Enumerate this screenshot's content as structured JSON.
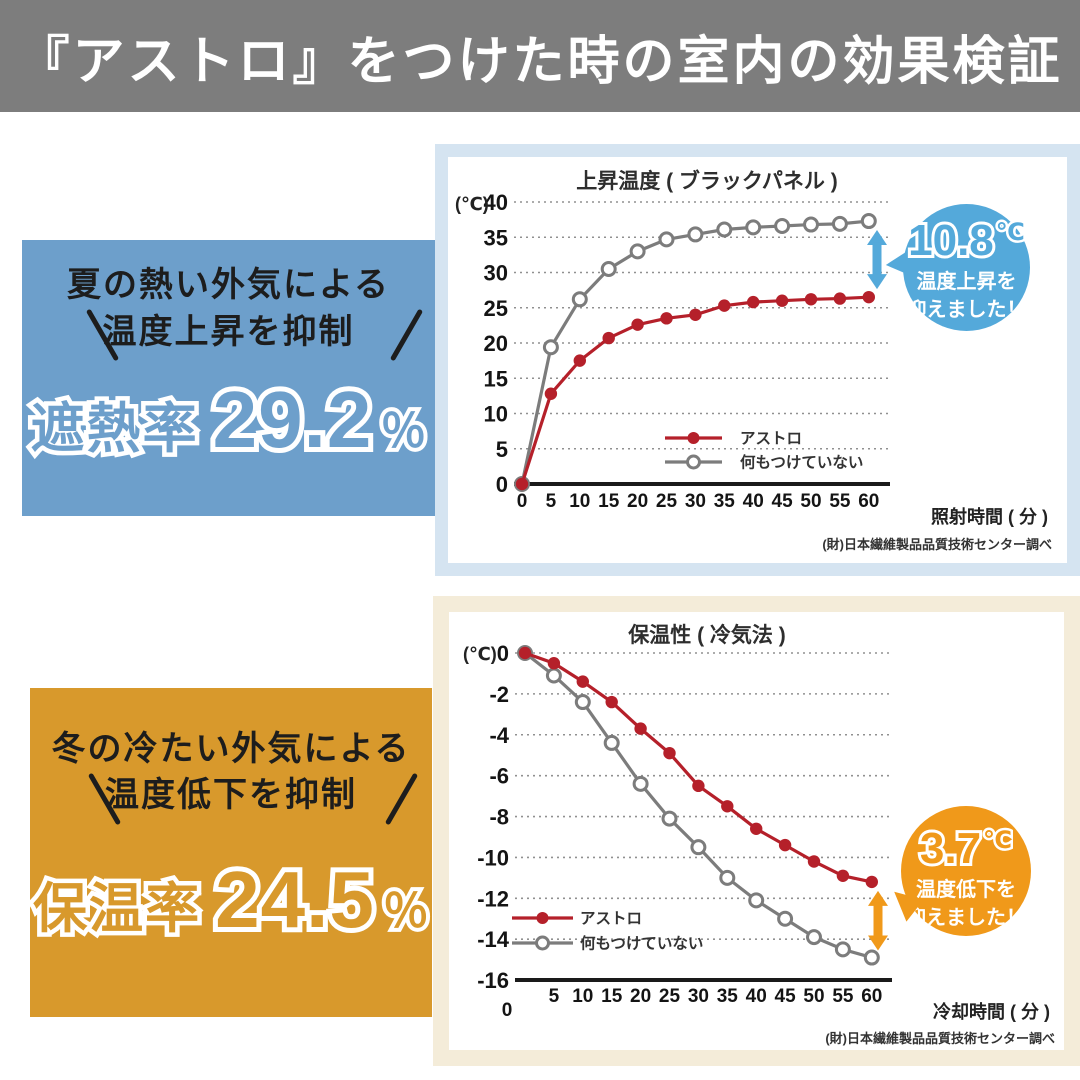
{
  "header": {
    "title": "『アストロ』をつけた時の室内の効果検証"
  },
  "summer_box": {
    "line1": "夏の熱い外気による",
    "line2": "温度上昇を抑制",
    "stat_label": "遮熱率",
    "stat_value": "29.2",
    "stat_unit": "％",
    "bg_color": "#6d9fcb"
  },
  "winter_box": {
    "line1": "冬の冷たい外気による",
    "line2": "温度低下を抑制",
    "stat_label": "保温率",
    "stat_value": "24.5",
    "stat_unit": "％",
    "bg_color": "#d8992c"
  },
  "chart_data": [
    {
      "type": "line",
      "title": "上昇温度 ( ブラックパネル )",
      "y_unit_label": "(℃)",
      "xlabel": "照射時間 ( 分 )",
      "x": [
        0,
        5,
        10,
        15,
        20,
        25,
        30,
        35,
        40,
        45,
        50,
        55,
        60
      ],
      "ylim": [
        0,
        40
      ],
      "yticks": [
        40,
        35,
        30,
        25,
        20,
        15,
        10,
        5,
        0
      ],
      "x_axis_at": 0,
      "grid": "dashed-horizontal",
      "legend_position": "lower-right",
      "series": [
        {
          "name": "アストロ",
          "color": "#b5202a",
          "marker": "filled",
          "values": [
            0,
            12.8,
            17.5,
            20.7,
            22.6,
            23.5,
            24.0,
            25.3,
            25.8,
            26.0,
            26.2,
            26.3,
            26.5
          ]
        },
        {
          "name": "何もつけていない",
          "color": "#7c7c7c",
          "marker": "open",
          "values": [
            0,
            19.4,
            26.2,
            30.5,
            33.0,
            34.7,
            35.4,
            36.1,
            36.4,
            36.6,
            36.8,
            36.9,
            37.3
          ]
        }
      ],
      "source": "(財)日本繊維製品品質技術センター調べ",
      "callout": {
        "value": "10.8",
        "unit": "℃",
        "line1": "温度上昇を",
        "line2": "抑えました！",
        "color": "#54a9da"
      }
    },
    {
      "type": "line",
      "title": "保温性 ( 冷気法 )",
      "y_unit_label": "(℃)",
      "xlabel": "冷却時間 ( 分 )",
      "x": [
        0,
        5,
        10,
        15,
        20,
        25,
        30,
        35,
        40,
        45,
        50,
        55,
        60
      ],
      "ylim": [
        -16,
        0
      ],
      "yticks": [
        0,
        -2,
        -4,
        -6,
        -8,
        -10,
        -12,
        -14,
        -16
      ],
      "x_axis_at": -16,
      "grid": "dashed-horizontal",
      "legend_position": "lower-left",
      "series": [
        {
          "name": "アストロ",
          "color": "#b5202a",
          "marker": "filled",
          "values": [
            0,
            -0.5,
            -1.4,
            -2.4,
            -3.7,
            -4.9,
            -6.5,
            -7.5,
            -8.6,
            -9.4,
            -10.2,
            -10.9,
            -11.2
          ]
        },
        {
          "name": "何もつけていない",
          "color": "#7c7c7c",
          "marker": "open",
          "values": [
            0,
            -1.1,
            -2.4,
            -4.4,
            -6.4,
            -8.1,
            -9.5,
            -11.0,
            -12.1,
            -13.0,
            -13.9,
            -14.5,
            -14.9
          ]
        }
      ],
      "source": "(財)日本繊維製品品質技術センター調べ",
      "callout": {
        "value": "3.7",
        "unit": "℃",
        "line1": "温度低下を",
        "line2": "抑えました！",
        "color": "#f0991a"
      }
    }
  ]
}
